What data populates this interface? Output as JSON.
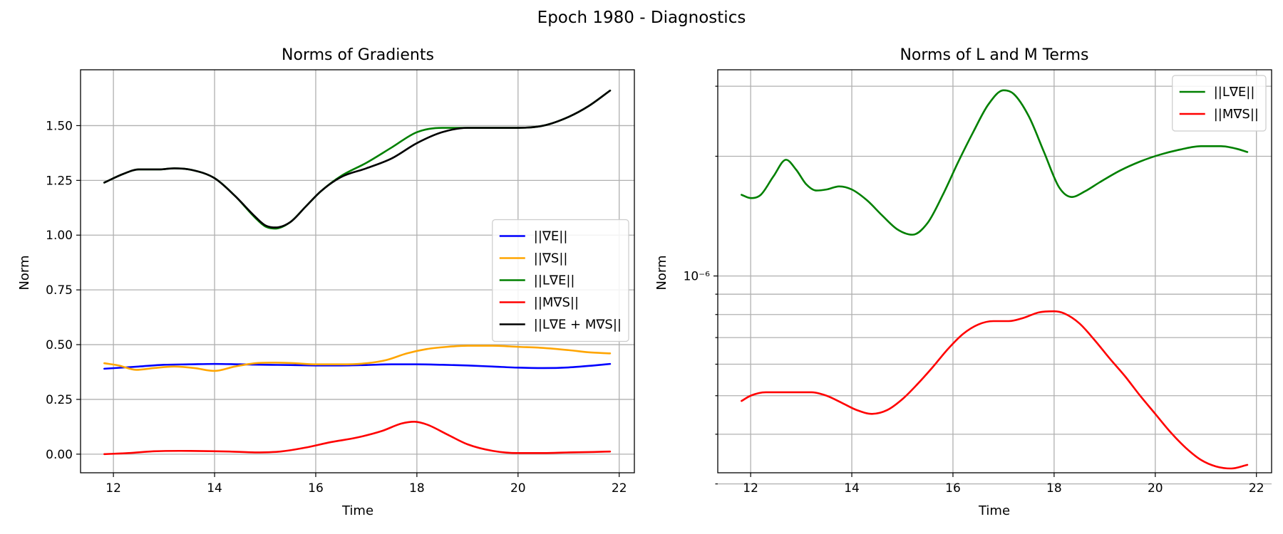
{
  "figure": {
    "suptitle": "Epoch 1980 - Diagnostics"
  },
  "chart_data": [
    {
      "type": "line",
      "title": "Norms of Gradients",
      "xlabel": "Time",
      "ylabel": "Norm",
      "xlim": [
        11.35,
        22.3
      ],
      "ylim": [
        -0.085,
        1.755
      ],
      "yscale": "linear",
      "grid": true,
      "legend": "center-right",
      "xticks": [
        12,
        14,
        16,
        18,
        20,
        22
      ],
      "xtick_labels": [
        "12",
        "14",
        "16",
        "18",
        "20",
        "22"
      ],
      "yticks": [
        0.0,
        0.25,
        0.5,
        0.75,
        1.0,
        1.25,
        1.5
      ],
      "ytick_labels": [
        "0.00",
        "0.25",
        "0.50",
        "0.75",
        "1.00",
        "1.25",
        "1.50"
      ],
      "series": [
        {
          "name": "||∇E||",
          "color": "#0000ff",
          "x": [
            11.82,
            12.5,
            13.0,
            13.5,
            14.0,
            14.5,
            15.0,
            15.5,
            16.0,
            16.5,
            17.0,
            17.5,
            18.0,
            18.5,
            19.0,
            19.5,
            20.0,
            20.5,
            21.0,
            21.5,
            21.82
          ],
          "y": [
            0.39,
            0.4,
            0.408,
            0.41,
            0.412,
            0.41,
            0.408,
            0.407,
            0.405,
            0.405,
            0.407,
            0.41,
            0.41,
            0.408,
            0.405,
            0.4,
            0.395,
            0.393,
            0.396,
            0.405,
            0.412
          ]
        },
        {
          "name": "||∇S||",
          "color": "#ffa500",
          "x": [
            11.82,
            12.1,
            12.45,
            12.8,
            13.2,
            13.6,
            14.0,
            14.4,
            14.8,
            15.2,
            15.6,
            16.0,
            16.5,
            17.0,
            17.4,
            17.8,
            18.2,
            18.6,
            19.0,
            19.5,
            20.0,
            20.5,
            21.0,
            21.4,
            21.82
          ],
          "y": [
            0.415,
            0.405,
            0.385,
            0.393,
            0.4,
            0.393,
            0.38,
            0.4,
            0.415,
            0.418,
            0.415,
            0.41,
            0.41,
            0.415,
            0.43,
            0.46,
            0.48,
            0.49,
            0.495,
            0.495,
            0.49,
            0.485,
            0.475,
            0.465,
            0.46
          ]
        },
        {
          "name": "||L∇E||",
          "color": "#008000",
          "x": [
            11.82,
            12.2,
            12.5,
            12.9,
            13.2,
            13.6,
            14.0,
            14.4,
            14.8,
            15.0,
            15.2,
            15.5,
            15.8,
            16.1,
            16.5,
            17.0,
            17.5,
            18.0,
            18.5,
            19.0,
            19.5,
            20.0,
            20.5,
            21.0,
            21.4,
            21.82
          ],
          "y": [
            1.24,
            1.28,
            1.3,
            1.3,
            1.305,
            1.295,
            1.26,
            1.18,
            1.08,
            1.04,
            1.03,
            1.06,
            1.13,
            1.2,
            1.27,
            1.33,
            1.4,
            1.47,
            1.49,
            1.49,
            1.49,
            1.49,
            1.5,
            1.54,
            1.59,
            1.66
          ]
        },
        {
          "name": "||M∇S||",
          "color": "#ff0000",
          "x": [
            11.82,
            12.3,
            12.8,
            13.3,
            13.8,
            14.3,
            14.8,
            15.3,
            15.8,
            16.3,
            16.8,
            17.3,
            17.7,
            17.95,
            18.2,
            18.6,
            19.0,
            19.5,
            20.0,
            20.5,
            21.0,
            21.5,
            21.82
          ],
          "y": [
            0.0,
            0.005,
            0.013,
            0.015,
            0.014,
            0.012,
            0.008,
            0.012,
            0.03,
            0.055,
            0.075,
            0.105,
            0.14,
            0.148,
            0.135,
            0.09,
            0.045,
            0.015,
            0.005,
            0.005,
            0.008,
            0.01,
            0.012
          ]
        },
        {
          "name": "||L∇E + M∇S||",
          "color": "#000000",
          "x": [
            11.82,
            12.2,
            12.5,
            12.9,
            13.2,
            13.6,
            14.0,
            14.4,
            14.8,
            15.0,
            15.2,
            15.5,
            15.8,
            16.1,
            16.5,
            17.0,
            17.5,
            18.0,
            18.5,
            19.0,
            19.5,
            20.0,
            20.5,
            21.0,
            21.4,
            21.82
          ],
          "y": [
            1.24,
            1.28,
            1.3,
            1.3,
            1.305,
            1.295,
            1.26,
            1.18,
            1.085,
            1.045,
            1.035,
            1.06,
            1.13,
            1.2,
            1.265,
            1.305,
            1.35,
            1.42,
            1.47,
            1.49,
            1.49,
            1.49,
            1.5,
            1.54,
            1.59,
            1.66
          ]
        }
      ]
    },
    {
      "type": "line",
      "title": "Norms of L and M Terms",
      "xlabel": "Time",
      "ylabel": "Norm",
      "xlim": [
        11.35,
        22.3
      ],
      "ylim": [
        3.2e-07,
        3.3e-06
      ],
      "yscale": "log",
      "grid": true,
      "legend": "top-right",
      "xticks": [
        12,
        14,
        16,
        18,
        20,
        22
      ],
      "xtick_labels": [
        "12",
        "14",
        "16",
        "18",
        "20",
        "22"
      ],
      "yticks": [
        1e-06
      ],
      "ytick_labels": [
        "10⁻⁶"
      ],
      "yminor_ticks": [
        3e-07,
        4e-07,
        5e-07,
        6e-07,
        7e-07,
        8e-07,
        9e-07,
        2e-06,
        3e-06
      ],
      "series": [
        {
          "name": "||L∇E||",
          "color": "#008000",
          "x": [
            11.82,
            12.0,
            12.2,
            12.45,
            12.7,
            12.9,
            13.1,
            13.3,
            13.5,
            13.75,
            14.0,
            14.3,
            14.6,
            14.9,
            15.2,
            15.5,
            15.8,
            16.1,
            16.4,
            16.7,
            17.0,
            17.2,
            17.5,
            17.8,
            18.1,
            18.35,
            18.6,
            18.9,
            19.3,
            19.7,
            20.1,
            20.5,
            20.9,
            21.3,
            21.6,
            21.82
          ],
          "y": [
            1.6e-06,
            1.57e-06,
            1.6e-06,
            1.78e-06,
            1.96e-06,
            1.85e-06,
            1.7e-06,
            1.64e-06,
            1.65e-06,
            1.68e-06,
            1.65e-06,
            1.55e-06,
            1.42e-06,
            1.31e-06,
            1.27e-06,
            1.36e-06,
            1.6e-06,
            1.93e-06,
            2.3e-06,
            2.7e-06,
            2.93e-06,
            2.87e-06,
            2.52e-06,
            2.05e-06,
            1.67e-06,
            1.58e-06,
            1.63e-06,
            1.72e-06,
            1.84e-06,
            1.94e-06,
            2.02e-06,
            2.08e-06,
            2.12e-06,
            2.12e-06,
            2.09e-06,
            2.05e-06
          ]
        },
        {
          "name": "||M∇S||",
          "color": "#ff0000",
          "x": [
            11.82,
            12.0,
            12.3,
            12.6,
            12.9,
            13.2,
            13.5,
            13.8,
            14.1,
            14.4,
            14.7,
            15.0,
            15.3,
            15.6,
            15.9,
            16.2,
            16.5,
            16.8,
            17.1,
            17.4,
            17.7,
            18.0,
            18.2,
            18.5,
            18.8,
            19.1,
            19.4,
            19.7,
            20.0,
            20.3,
            20.6,
            20.9,
            21.2,
            21.5,
            21.82
          ],
          "y": [
            4.85e-07,
            5e-07,
            5.1e-07,
            5.1e-07,
            5.1e-07,
            5.1e-07,
            5e-07,
            4.8e-07,
            4.6e-07,
            4.5e-07,
            4.6e-07,
            4.9e-07,
            5.35e-07,
            5.9e-07,
            6.55e-07,
            7.15e-07,
            7.55e-07,
            7.7e-07,
            7.7e-07,
            7.85e-07,
            8.1e-07,
            8.15e-07,
            8.05e-07,
            7.6e-07,
            6.9e-07,
            6.2e-07,
            5.6e-07,
            5e-07,
            4.5e-07,
            4.05e-07,
            3.7e-07,
            3.45e-07,
            3.32e-07,
            3.28e-07,
            3.35e-07
          ]
        }
      ]
    }
  ]
}
